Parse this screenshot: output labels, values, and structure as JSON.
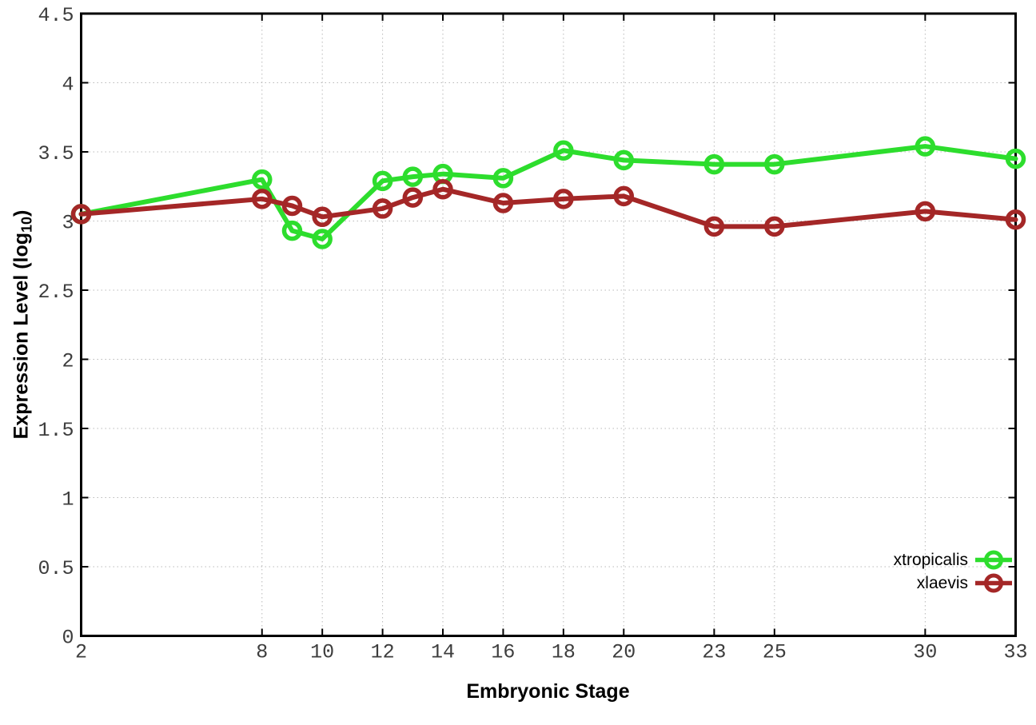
{
  "chart_data": {
    "type": "line",
    "x": [
      2,
      8,
      9,
      10,
      12,
      13,
      14,
      16,
      18,
      20,
      23,
      25,
      30,
      33
    ],
    "series": [
      {
        "name": "xtropicalis",
        "color": "#2ddd2d",
        "values": [
          3.05,
          3.3,
          2.93,
          2.87,
          3.29,
          3.32,
          3.34,
          3.31,
          3.51,
          3.44,
          3.41,
          3.41,
          3.54,
          3.45
        ]
      },
      {
        "name": "xlaevis",
        "color": "#a42727",
        "values": [
          3.05,
          3.16,
          3.11,
          3.03,
          3.09,
          3.17,
          3.23,
          3.13,
          3.16,
          3.18,
          2.96,
          2.96,
          3.07,
          3.01
        ]
      }
    ],
    "title": "",
    "xlabel": "Embryonic Stage",
    "ylabel": "Expression Level (log10)",
    "xticks": [
      2,
      8,
      10,
      12,
      14,
      16,
      18,
      20,
      23,
      25,
      30,
      33
    ],
    "xtick_labels": [
      "2",
      "8",
      "10",
      "12",
      "14",
      "16",
      "18",
      "20",
      "23",
      "25",
      "30",
      "33"
    ],
    "yticks": [
      0,
      0.5,
      1,
      1.5,
      2,
      2.5,
      3,
      3.5,
      4,
      4.5
    ],
    "ytick_labels": [
      "0",
      "0.5",
      "1",
      "1.5",
      "2",
      "2.5",
      "3",
      "3.5",
      "4",
      "4.5"
    ],
    "xlim": [
      2,
      33
    ],
    "ylim": [
      0,
      4.5
    ],
    "grid": true,
    "legend_position": "inside-bottom-right",
    "marker": "open-circle"
  },
  "labels": {
    "x_title": "Embryonic Stage",
    "y_title_prefix": "Expression Level (log",
    "y_title_sub": "10",
    "y_title_suffix": ")"
  },
  "legend": {
    "entries": [
      {
        "label": "xtropicalis"
      },
      {
        "label": "xlaevis"
      }
    ]
  },
  "style": {
    "border_color": "#000000",
    "grid_color": "#b9b9b9",
    "tick_label_color": "#3d3d3d",
    "background": "#ffffff"
  }
}
